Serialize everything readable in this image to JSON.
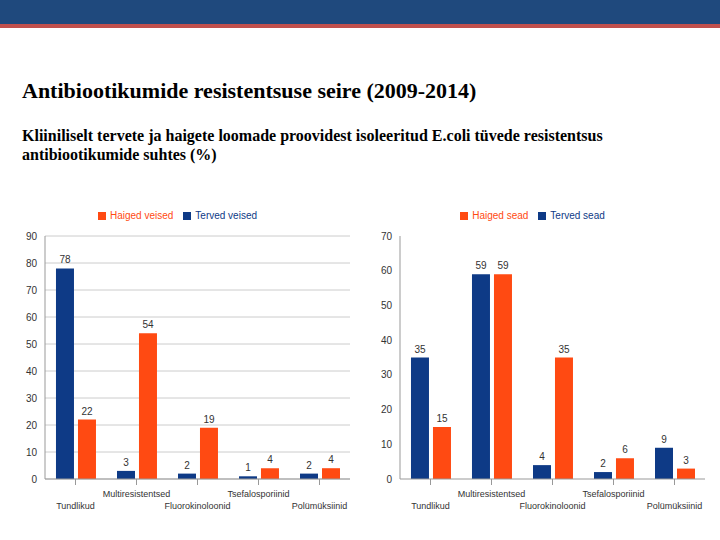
{
  "title": "Antibiootikumide resistentsuse seire (2009-2014)",
  "subtitle": "Kliiniliselt tervete ja haigete loomade proovidest isoleeritud E.coli tüvede resistentsus antibiootikumide suhtes (%)",
  "chart_data": [
    {
      "type": "bar",
      "categories": [
        "Tundlikud",
        "Multiresistentsed",
        "Fluorokinoloonid",
        "Tsefalosporiinid",
        "Polümüksiinid"
      ],
      "series": [
        {
          "name": "Terved veised",
          "color": "#0e3a86",
          "values": [
            78,
            3,
            2,
            1,
            2
          ]
        },
        {
          "name": "Haiged veised",
          "color": "#ff4a12",
          "values": [
            22,
            54,
            19,
            4,
            4
          ]
        }
      ],
      "ylim": [
        0,
        90
      ],
      "yticks": [
        0,
        10,
        20,
        30,
        40,
        50,
        60,
        70,
        80,
        90
      ],
      "grid": true,
      "legend": "top",
      "data_labels": true
    },
    {
      "type": "bar",
      "categories": [
        "Tundlikud",
        "Multiresistentsed",
        "Fluorokinoloonid",
        "Tsefalosporiinid",
        "Polümüksiinid"
      ],
      "series": [
        {
          "name": "Terved sead",
          "color": "#0e3a86",
          "values": [
            35,
            59,
            4,
            2,
            9
          ]
        },
        {
          "name": "Haiged sead",
          "color": "#ff4a12",
          "values": [
            15,
            59,
            35,
            6,
            3
          ]
        }
      ],
      "ylim": [
        0,
        70
      ],
      "yticks": [
        0,
        10,
        20,
        30,
        40,
        50,
        60,
        70
      ],
      "grid": false,
      "legend": "top",
      "data_labels": true
    }
  ]
}
